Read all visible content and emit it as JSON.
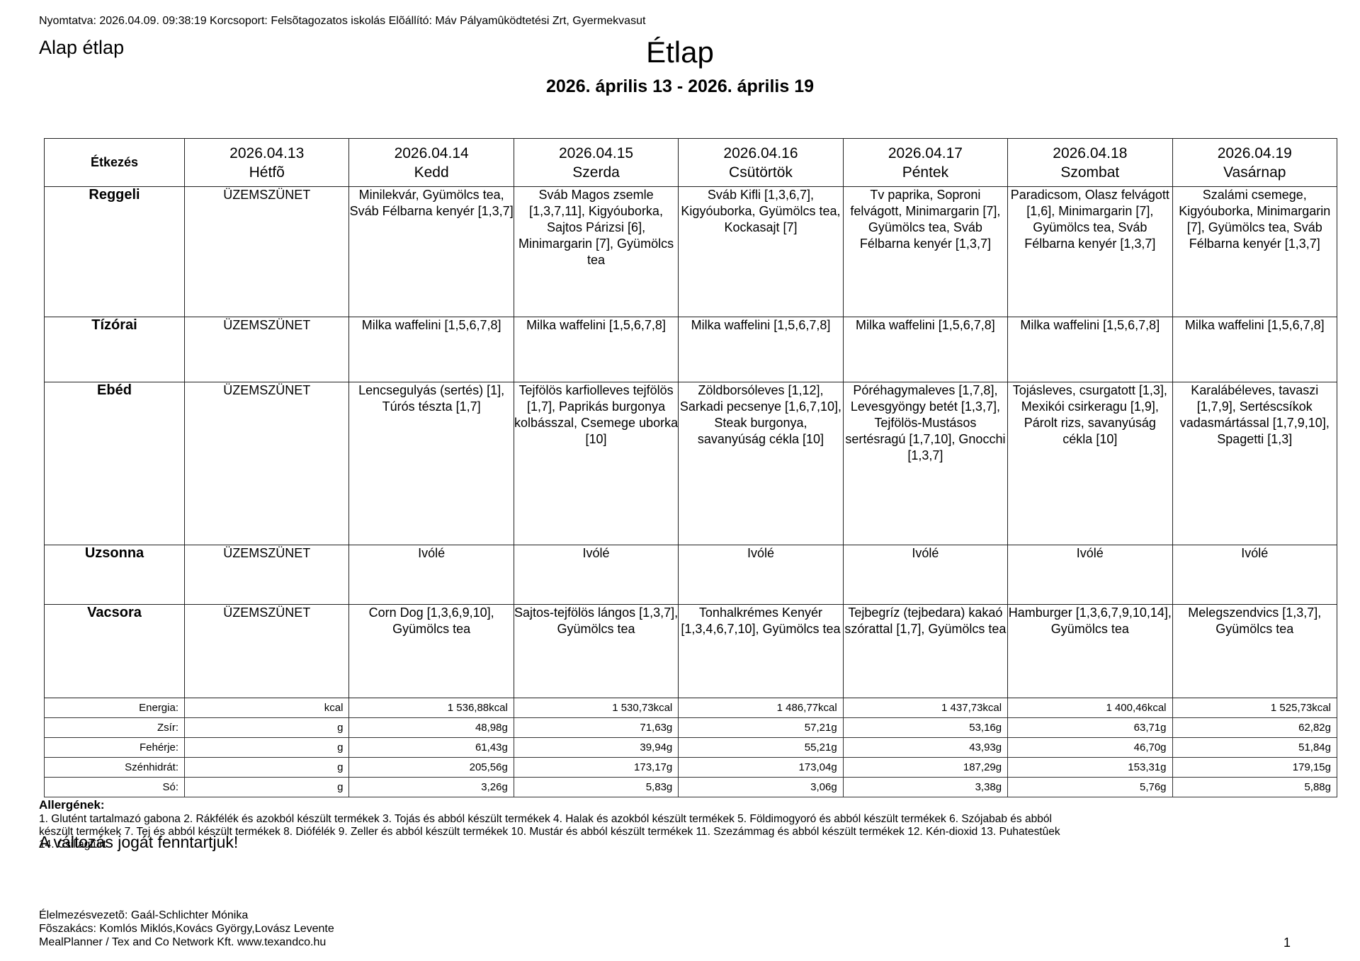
{
  "meta": {
    "printed_line": "Nyomtatva: 2026.04.09. 09:38:19 Korcsoport: Felsõtagozatos iskolás Elõállító: Máv Pályamûködtetési Zrt, Gyermekvasut",
    "menu_name": "Alap étlap",
    "title": "Étlap",
    "date_range": "2026. április 13 - 2026. április 19",
    "page_number": "1"
  },
  "table": {
    "corner_header": "Étkezés",
    "days": [
      {
        "date": "2026.04.13",
        "day": "Hétfõ"
      },
      {
        "date": "2026.04.14",
        "day": "Kedd"
      },
      {
        "date": "2026.04.15",
        "day": "Szerda"
      },
      {
        "date": "2026.04.16",
        "day": "Csütörtök"
      },
      {
        "date": "2026.04.17",
        "day": "Péntek"
      },
      {
        "date": "2026.04.18",
        "day": "Szombat"
      },
      {
        "date": "2026.04.19",
        "day": "Vasárnap"
      }
    ],
    "meals": [
      {
        "label": "Reggeli",
        "cells": [
          "ÜZEMSZÜNET",
          "Minilekvár, Gyümölcs tea, Sváb Félbarna kenyér [1,3,7]",
          "Sváb Magos zsemle [1,3,7,11], Kigyóuborka, Sajtos Párizsi [6], Minimargarin [7], Gyümölcs tea",
          "Sváb Kifli [1,3,6,7], Kigyóuborka, Gyümölcs tea, Kockasajt [7]",
          "Tv paprika, Soproni felvágott, Minimargarin [7], Gyümölcs tea, Sváb Félbarna kenyér [1,3,7]",
          "Paradicsom, Olasz felvágott [1,6], Minimargarin [7], Gyümölcs tea, Sváb Félbarna kenyér [1,3,7]",
          "Szalámi csemege, Kigyóuborka, Minimargarin [7], Gyümölcs tea, Sváb Félbarna kenyér [1,3,7]"
        ]
      },
      {
        "label": "Tízórai",
        "cells": [
          "ÜZEMSZÜNET",
          "Milka waffelini [1,5,6,7,8]",
          "Milka waffelini [1,5,6,7,8]",
          "Milka waffelini [1,5,6,7,8]",
          "Milka waffelini [1,5,6,7,8]",
          "Milka waffelini [1,5,6,7,8]",
          "Milka waffelini [1,5,6,7,8]"
        ]
      },
      {
        "label": "Ebéd",
        "cells": [
          "ÜZEMSZÜNET",
          "Lencsegulyás (sertés) [1], Túrós tészta [1,7]",
          "Tejfölös karfiolleves tejfölös [1,7], Paprikás burgonya kolbásszal, Csemege uborka [10]",
          "Zöldborsóleves [1,12], Sarkadi pecsenye [1,6,7,10], Steak burgonya, savanyúság cékla [10]",
          "Póréhagymaleves [1,7,8], Levesgyöngy betét [1,3,7], Tejfölös-Mustásos sertésragú [1,7,10], Gnocchi [1,3,7]",
          "Tojásleves, csurgatott [1,3], Mexikói csirkeragu [1,9], Párolt rizs, savanyúság cékla [10]",
          "Karalábéleves, tavaszi [1,7,9], Sertéscsíkok vadasmártással [1,7,9,10], Spagetti [1,3]"
        ]
      },
      {
        "label": "Uzsonna",
        "cells": [
          "ÜZEMSZÜNET",
          "Ivólé",
          "Ivólé",
          "Ivólé",
          "Ivólé",
          "Ivólé",
          "Ivólé"
        ]
      },
      {
        "label": "Vacsora",
        "cells": [
          "ÜZEMSZÜNET",
          "Corn Dog [1,3,6,9,10], Gyümölcs tea",
          "Sajtos-tejfölös lángos [1,3,7], Gyümölcs tea",
          "Tonhalkrémes Kenyér [1,3,4,6,7,10], Gyümölcs tea",
          "Tejbegríz (tejbedara) kakaó szórattal [1,7], Gyümölcs tea",
          "Hamburger [1,3,6,7,9,10,14], Gyümölcs tea",
          "Melegszendvics [1,3,7], Gyümölcs tea"
        ]
      }
    ],
    "nutrition": [
      {
        "label": "Energia:",
        "unit": "kcal",
        "values": [
          "1 536,88kcal",
          "1 530,73kcal",
          "1 486,77kcal",
          "1 437,73kcal",
          "1 400,46kcal",
          "1 525,73kcal"
        ]
      },
      {
        "label": "Zsír:",
        "unit": "g",
        "values": [
          "48,98g",
          "71,63g",
          "57,21g",
          "53,16g",
          "63,71g",
          "62,82g"
        ]
      },
      {
        "label": "Fehérje:",
        "unit": "g",
        "values": [
          "61,43g",
          "39,94g",
          "55,21g",
          "43,93g",
          "46,70g",
          "51,84g"
        ]
      },
      {
        "label": "Szénhidrát:",
        "unit": "g",
        "values": [
          "205,56g",
          "173,17g",
          "173,04g",
          "187,29g",
          "153,31g",
          "179,15g"
        ]
      },
      {
        "label": "Só:",
        "unit": "g",
        "values": [
          "3,26g",
          "5,83g",
          "3,06g",
          "3,38g",
          "5,76g",
          "5,88g"
        ]
      }
    ]
  },
  "allergens": {
    "heading": "Allergének:",
    "line1": "1. Glutént tartalmazó gabona 2. Rákfélék és azokból készült termékek 3. Tojás és abból készült termékek 4. Halak és azokból készült termékek 5. Földimogyoró és abból készült termékek 6. Szójabab és abból",
    "line2": "készült termékek 7. Tej és abból készült termékek 8. Diófélék 9. Zeller és abból készült termékek 10. Mustár és abból készült termékek 11. Szezámmag és abból készült termékek 12. Kén-dioxid 13. Puhatestûek",
    "line3": "14. Csillagfürt"
  },
  "disclaimer": "A változás jogát fenntartjuk!",
  "footer": {
    "line1": "Élelmezésvezetõ: Gaál-Schlichter Mónika",
    "line2": "Fõszakács: Komlós Miklós,Kovács György,Lovász Levente",
    "line3": "MealPlanner / Tex and Co Network Kft. www.texandco.hu"
  }
}
